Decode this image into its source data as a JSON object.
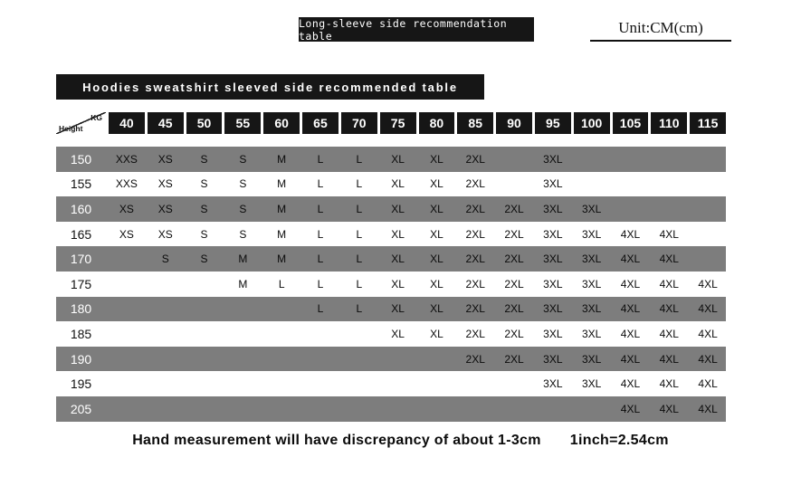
{
  "header": {
    "banner": "Long-sleeve side recommendation table",
    "unit": "Unit:CM(cm)"
  },
  "subtitle": "Hoodies sweatshirt sleeved side recommended table",
  "chart_data": {
    "type": "table",
    "title": "Hoodies sweatshirt sleeved side recommended table",
    "corner": {
      "top_right": "KG",
      "bottom_left": "Height"
    },
    "columns_weight_kg": [
      "40",
      "45",
      "50",
      "55",
      "60",
      "65",
      "70",
      "75",
      "80",
      "85",
      "90",
      "95",
      "100",
      "105",
      "110",
      "115"
    ],
    "rows": [
      {
        "height": "150",
        "values": [
          "XXS",
          "XS",
          "S",
          "S",
          "M",
          "L",
          "L",
          "XL",
          "XL",
          "2XL",
          "",
          "3XL",
          "",
          "",
          "",
          ""
        ]
      },
      {
        "height": "155",
        "values": [
          "XXS",
          "XS",
          "S",
          "S",
          "M",
          "L",
          "L",
          "XL",
          "XL",
          "2XL",
          "",
          "3XL",
          "",
          "",
          "",
          ""
        ]
      },
      {
        "height": "160",
        "values": [
          "XS",
          "XS",
          "S",
          "S",
          "M",
          "L",
          "L",
          "XL",
          "XL",
          "2XL",
          "2XL",
          "3XL",
          "3XL",
          "",
          "",
          ""
        ]
      },
      {
        "height": "165",
        "values": [
          "XS",
          "XS",
          "S",
          "S",
          "M",
          "L",
          "L",
          "XL",
          "XL",
          "2XL",
          "2XL",
          "3XL",
          "3XL",
          "4XL",
          "4XL",
          ""
        ]
      },
      {
        "height": "170",
        "values": [
          "",
          "S",
          "S",
          "M",
          "M",
          "L",
          "L",
          "XL",
          "XL",
          "2XL",
          "2XL",
          "3XL",
          "3XL",
          "4XL",
          "4XL",
          ""
        ]
      },
      {
        "height": "175",
        "values": [
          "",
          "",
          "",
          "M",
          "L",
          "L",
          "L",
          "XL",
          "XL",
          "2XL",
          "2XL",
          "3XL",
          "3XL",
          "4XL",
          "4XL",
          "4XL"
        ]
      },
      {
        "height": "180",
        "values": [
          "",
          "",
          "",
          "",
          "",
          "L",
          "L",
          "XL",
          "XL",
          "2XL",
          "2XL",
          "3XL",
          "3XL",
          "4XL",
          "4XL",
          "4XL"
        ]
      },
      {
        "height": "185",
        "values": [
          "",
          "",
          "",
          "",
          "",
          "",
          "",
          "XL",
          "XL",
          "2XL",
          "2XL",
          "3XL",
          "3XL",
          "4XL",
          "4XL",
          "4XL"
        ]
      },
      {
        "height": "190",
        "values": [
          "",
          "",
          "",
          "",
          "",
          "",
          "",
          "",
          "",
          "2XL",
          "2XL",
          "3XL",
          "3XL",
          "4XL",
          "4XL",
          "4XL"
        ]
      },
      {
        "height": "195",
        "values": [
          "",
          "",
          "",
          "",
          "",
          "",
          "",
          "",
          "",
          "",
          "",
          "3XL",
          "3XL",
          "4XL",
          "4XL",
          "4XL"
        ]
      },
      {
        "height": "205",
        "values": [
          "",
          "",
          "",
          "",
          "",
          "",
          "",
          "",
          "",
          "",
          "",
          "",
          "",
          "4XL",
          "4XL",
          "4XL"
        ]
      }
    ]
  },
  "footer": {
    "note": "Hand measurement will have discrepancy of about 1-3cm",
    "conversion": "1inch=2.54cm"
  },
  "colors": {
    "banner_black": "#161616",
    "gray_row": "#7d7d7d",
    "text_on_gray": "#ffffff",
    "text": "#0b0b0b"
  }
}
